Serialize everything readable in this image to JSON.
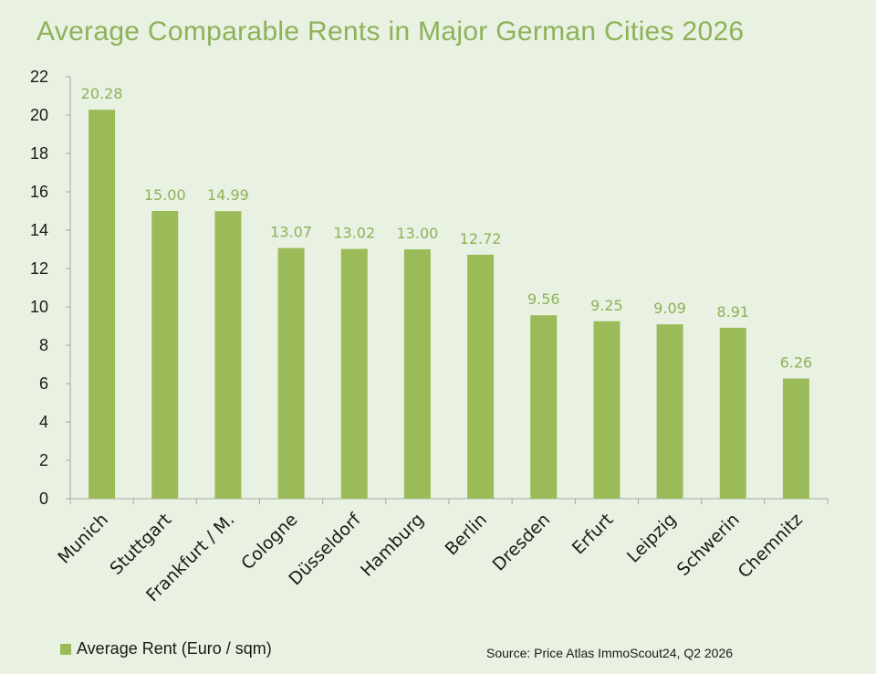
{
  "chart_data": {
    "type": "bar",
    "title": "Average Comparable Rents in Major German Cities 2026",
    "categories": [
      "Munich",
      "Stuttgart",
      "Frankfurt / M.",
      "Cologne",
      "Düsseldorf",
      "Hamburg",
      "Berlin",
      "Dresden",
      "Erfurt",
      "Leipzig",
      "Schwerin",
      "Chemnitz"
    ],
    "series": [
      {
        "name": "Average Rent (Euro / sqm)",
        "values": [
          20.28,
          15.0,
          14.99,
          13.07,
          13.02,
          13.0,
          12.72,
          9.56,
          9.25,
          9.09,
          8.91,
          6.26
        ],
        "labels": [
          "20.28",
          "15.00",
          "14.99",
          "13.07",
          "13.02",
          "13.00",
          "12.72",
          "9.56",
          "9.25",
          "9.09",
          "8.91",
          "6.26"
        ]
      }
    ],
    "ylim": [
      0,
      22
    ],
    "yticks": [
      0,
      2,
      4,
      6,
      8,
      10,
      12,
      14,
      16,
      18,
      20,
      22
    ],
    "grid": false,
    "legend_position": "bottom-left",
    "xlabel": "",
    "ylabel": "",
    "colors": {
      "bar": "#9bbb59",
      "data_label": "#8db25a",
      "title": "#8db25a",
      "axis": "#a6a6a6",
      "background": "#e9f1e2"
    }
  },
  "source_note": "Source: Price Atlas ImmoScout24,  Q2 2026"
}
